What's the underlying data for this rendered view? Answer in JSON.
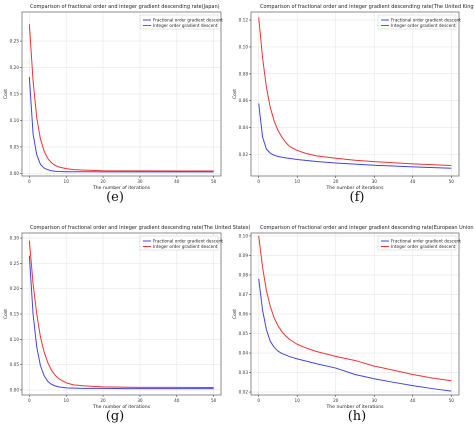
{
  "chart_data": [
    {
      "type": "line",
      "title": "Comparison of fractional order and integer gradient descending rate(Japan)",
      "xlabel": "The number of iterations",
      "ylabel": "Cost",
      "caption": "(e)",
      "xlim": [
        -2,
        52
      ],
      "ylim": [
        -0.005,
        0.305
      ],
      "xticks": [
        0,
        10,
        20,
        30,
        40,
        50
      ],
      "yticks": [
        0.0,
        0.05,
        0.1,
        0.15,
        0.2,
        0.25
      ],
      "ytick_labels": [
        "0.00",
        "0.05",
        "0.10",
        "0.15",
        "0.20",
        "0.25"
      ],
      "grid": true,
      "legend_position": "top-right",
      "series": [
        {
          "name": "Fractional order gradient descent",
          "color": "#4444dd",
          "x": [
            0,
            1,
            2,
            3,
            4,
            5,
            6,
            7,
            8,
            10,
            12,
            15,
            20,
            25,
            30,
            40,
            50
          ],
          "y": [
            0.182,
            0.075,
            0.035,
            0.017,
            0.01,
            0.007,
            0.005,
            0.004,
            0.0035,
            0.003,
            0.003,
            0.003,
            0.0028,
            0.0028,
            0.0027,
            0.0027,
            0.0027
          ]
        },
        {
          "name": "Integer order gradient descent",
          "color": "#ee3333",
          "x": [
            0,
            1,
            2,
            3,
            4,
            5,
            6,
            7,
            8,
            10,
            12,
            15,
            20,
            25,
            30,
            40,
            50
          ],
          "y": [
            0.282,
            0.175,
            0.105,
            0.065,
            0.042,
            0.028,
            0.02,
            0.015,
            0.012,
            0.009,
            0.007,
            0.006,
            0.005,
            0.0048,
            0.0046,
            0.0045,
            0.0044
          ]
        }
      ]
    },
    {
      "type": "line",
      "title": "Comparison of fractional order and integer gradient descending rate(The United Kingdom)",
      "xlabel": "The number of iterations",
      "ylabel": "Cost",
      "caption": "(f)",
      "xlim": [
        -2,
        52
      ],
      "ylim": [
        0.004,
        0.126
      ],
      "xticks": [
        0,
        10,
        20,
        30,
        40,
        50
      ],
      "yticks": [
        0.02,
        0.04,
        0.06,
        0.08,
        0.1,
        0.12
      ],
      "ytick_labels": [
        "0.02",
        "0.04",
        "0.06",
        "0.08",
        "0.10",
        "0.12"
      ],
      "grid": true,
      "legend_position": "top-right",
      "series": [
        {
          "name": "Fractional order gradient descent",
          "color": "#4444dd",
          "x": [
            0,
            1,
            2,
            3,
            4,
            5,
            7,
            10,
            15,
            20,
            30,
            40,
            50
          ],
          "y": [
            0.058,
            0.033,
            0.024,
            0.021,
            0.0195,
            0.0185,
            0.0175,
            0.0163,
            0.0148,
            0.0137,
            0.012,
            0.0108,
            0.0098
          ]
        },
        {
          "name": "Integer order gradient descent",
          "color": "#ee3333",
          "x": [
            0,
            1,
            2,
            3,
            4,
            5,
            6,
            7,
            8,
            10,
            12,
            15,
            20,
            25,
            30,
            40,
            50
          ],
          "y": [
            0.122,
            0.092,
            0.07,
            0.055,
            0.045,
            0.038,
            0.033,
            0.029,
            0.026,
            0.023,
            0.021,
            0.019,
            0.0172,
            0.0157,
            0.0147,
            0.013,
            0.0118
          ]
        }
      ]
    },
    {
      "type": "line",
      "title": "Comparison of fractional order and integer gradient descending rate(The United States)",
      "xlabel": "The number of iterations",
      "ylabel": "Cost",
      "caption": "(g)",
      "xlim": [
        -2,
        52
      ],
      "ylim": [
        -0.01,
        0.31
      ],
      "xticks": [
        0,
        10,
        20,
        30,
        40,
        50
      ],
      "yticks": [
        0.0,
        0.05,
        0.1,
        0.15,
        0.2,
        0.25,
        0.3
      ],
      "ytick_labels": [
        "0.00",
        "0.05",
        "0.10",
        "0.15",
        "0.20",
        "0.25",
        "0.30"
      ],
      "grid": true,
      "legend_position": "top-right",
      "series": [
        {
          "name": "Fractional order gradient descent",
          "color": "#4444dd",
          "x": [
            0,
            1,
            2,
            3,
            4,
            5,
            6,
            7,
            8,
            10,
            12,
            15,
            20,
            30,
            40,
            50
          ],
          "y": [
            0.265,
            0.15,
            0.085,
            0.048,
            0.028,
            0.017,
            0.011,
            0.008,
            0.006,
            0.004,
            0.0035,
            0.003,
            0.003,
            0.0025,
            0.0025,
            0.0025
          ]
        },
        {
          "name": "Integer order gradient descent",
          "color": "#ee3333",
          "x": [
            0,
            1,
            2,
            3,
            4,
            5,
            6,
            7,
            8,
            10,
            12,
            15,
            20,
            25,
            30,
            40,
            50
          ],
          "y": [
            0.295,
            0.21,
            0.15,
            0.105,
            0.075,
            0.054,
            0.039,
            0.029,
            0.022,
            0.014,
            0.01,
            0.008,
            0.006,
            0.0055,
            0.005,
            0.005,
            0.0048
          ]
        }
      ]
    },
    {
      "type": "line",
      "title": "Comparison of fractional order and integer gradient descending rate(European Union)",
      "xlabel": "The number of iterations",
      "ylabel": "Cost",
      "caption": "(h)",
      "xlim": [
        -2,
        52
      ],
      "ylim": [
        0.0185,
        0.1015
      ],
      "xticks": [
        0,
        10,
        20,
        30,
        40,
        50
      ],
      "yticks": [
        0.02,
        0.03,
        0.04,
        0.05,
        0.06,
        0.07,
        0.08,
        0.09,
        0.1
      ],
      "ytick_labels": [
        "0.02",
        "0.03",
        "0.04",
        "0.05",
        "0.06",
        "0.07",
        "0.08",
        "0.09",
        "0.10"
      ],
      "grid": true,
      "legend_position": "top-right",
      "series": [
        {
          "name": "Fractional order gradient descent",
          "color": "#4444dd",
          "x": [
            0,
            1,
            2,
            3,
            4,
            5,
            6,
            8,
            10,
            15,
            20,
            25,
            30,
            35,
            40,
            45,
            50
          ],
          "y": [
            0.078,
            0.062,
            0.052,
            0.046,
            0.043,
            0.041,
            0.0398,
            0.0382,
            0.037,
            0.0345,
            0.0323,
            0.029,
            0.0268,
            0.025,
            0.0233,
            0.0218,
            0.0205
          ]
        },
        {
          "name": "Integer order gradient descent",
          "color": "#ee3333",
          "x": [
            0,
            1,
            2,
            3,
            4,
            5,
            6,
            7,
            8,
            10,
            12,
            15,
            20,
            25,
            30,
            35,
            40,
            45,
            50
          ],
          "y": [
            0.1,
            0.084,
            0.072,
            0.064,
            0.058,
            0.054,
            0.051,
            0.0488,
            0.047,
            0.0445,
            0.0428,
            0.0408,
            0.0383,
            0.0362,
            0.0333,
            0.0312,
            0.029,
            0.0272,
            0.0258
          ]
        }
      ]
    }
  ]
}
